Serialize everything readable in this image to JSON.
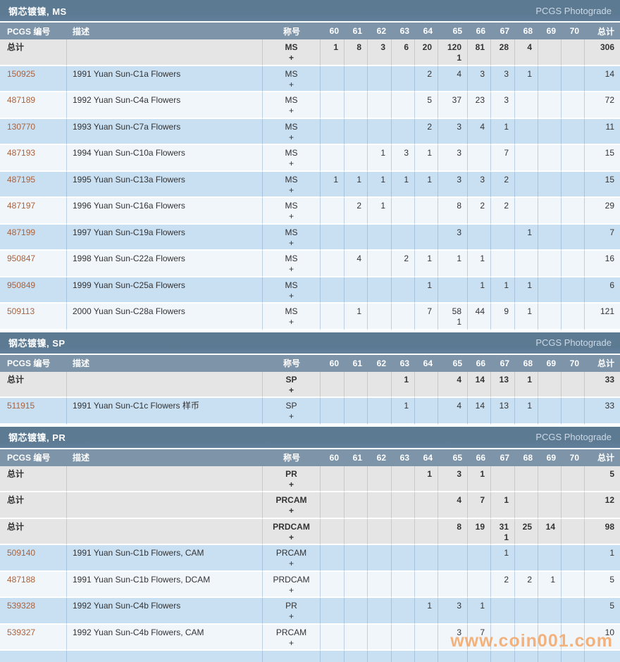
{
  "photograde_label": "PCGS Photograde",
  "watermark": {
    "text": "www.coin001.com",
    "color": "#f4a15d"
  },
  "colors": {
    "section_bar": "#5d7a93",
    "column_header": "#7d94a9",
    "total_row": "#e5e5e5",
    "row_blue": "#c9dff2",
    "row_light": "#f1f6fb",
    "link": "#a9623c"
  },
  "columns": {
    "id": "PCGS 编号",
    "description": "描述",
    "designation": "称号",
    "grades": [
      "60",
      "61",
      "62",
      "63",
      "64",
      "65",
      "66",
      "67",
      "68",
      "69",
      "70"
    ],
    "total": "总计"
  },
  "sections": [
    {
      "title": "钢芯镀镍, MS",
      "rows": [
        {
          "kind": "total",
          "id": "总计",
          "desc": "",
          "desig": [
            "MS",
            "+"
          ],
          "grades": [
            "1",
            "8",
            "3",
            "6",
            "20",
            [
              "120",
              "1"
            ],
            "81",
            "28",
            "4",
            "",
            ""
          ],
          "total": "306"
        },
        {
          "kind": "data",
          "id": "150925",
          "desc": "1991 Yuan Sun-C1a Flowers",
          "desig": [
            "MS",
            "+"
          ],
          "grades": [
            "",
            "",
            "",
            "",
            "2",
            "4",
            "3",
            "3",
            "1",
            "",
            ""
          ],
          "total": "14"
        },
        {
          "kind": "data",
          "id": "487189",
          "desc": "1992 Yuan Sun-C4a Flowers",
          "desig": [
            "MS",
            "+"
          ],
          "grades": [
            "",
            "",
            "",
            "",
            "5",
            "37",
            "23",
            "3",
            "",
            "",
            ""
          ],
          "total": "72"
        },
        {
          "kind": "data",
          "id": "130770",
          "desc": "1993 Yuan Sun-C7a Flowers",
          "desig": [
            "MS",
            "+"
          ],
          "grades": [
            "",
            "",
            "",
            "",
            "2",
            "3",
            "4",
            "1",
            "",
            "",
            ""
          ],
          "total": "11"
        },
        {
          "kind": "data",
          "id": "487193",
          "desc": "1994 Yuan Sun-C10a Flowers",
          "desig": [
            "MS",
            "+"
          ],
          "grades": [
            "",
            "",
            "1",
            "3",
            "1",
            "3",
            "",
            "7",
            "",
            "",
            ""
          ],
          "total": "15"
        },
        {
          "kind": "data",
          "id": "487195",
          "desc": "1995 Yuan Sun-C13a Flowers",
          "desig": [
            "MS",
            "+"
          ],
          "grades": [
            "1",
            "1",
            "1",
            "1",
            "1",
            "3",
            "3",
            "2",
            "",
            "",
            ""
          ],
          "total": "15"
        },
        {
          "kind": "data",
          "id": "487197",
          "desc": "1996 Yuan Sun-C16a Flowers",
          "desig": [
            "MS",
            "+"
          ],
          "grades": [
            "",
            "2",
            "1",
            "",
            "",
            "8",
            "2",
            "2",
            "",
            "",
            ""
          ],
          "total": "29"
        },
        {
          "kind": "data",
          "id": "487199",
          "desc": "1997 Yuan Sun-C19a Flowers",
          "desig": [
            "MS",
            "+"
          ],
          "grades": [
            "",
            "",
            "",
            "",
            "",
            "3",
            "",
            "",
            "1",
            "",
            ""
          ],
          "total": "7"
        },
        {
          "kind": "data",
          "id": "950847",
          "desc": "1998 Yuan Sun-C22a Flowers",
          "desig": [
            "MS",
            "+"
          ],
          "grades": [
            "",
            "4",
            "",
            "2",
            "1",
            "1",
            "1",
            "",
            "",
            "",
            ""
          ],
          "total": "16"
        },
        {
          "kind": "data",
          "id": "950849",
          "desc": "1999 Yuan Sun-C25a Flowers",
          "desig": [
            "MS",
            "+"
          ],
          "grades": [
            "",
            "",
            "",
            "",
            "1",
            "",
            "1",
            "1",
            "1",
            "",
            ""
          ],
          "total": "6"
        },
        {
          "kind": "data",
          "id": "509113",
          "desc": "2000 Yuan Sun-C28a Flowers",
          "desig": [
            "MS",
            "+"
          ],
          "grades": [
            "",
            "1",
            "",
            "",
            "7",
            [
              "58",
              "1"
            ],
            "44",
            "9",
            "1",
            "",
            ""
          ],
          "total": "121"
        }
      ]
    },
    {
      "title": "钢芯镀镍, SP",
      "rows": [
        {
          "kind": "total",
          "id": "总计",
          "desc": "",
          "desig": [
            "SP",
            "+"
          ],
          "grades": [
            "",
            "",
            "",
            "1",
            "",
            "4",
            "14",
            "13",
            "1",
            "",
            ""
          ],
          "total": "33"
        },
        {
          "kind": "data",
          "id": "511915",
          "desc": "1991 Yuan Sun-C1c Flowers 样币",
          "desig": [
            "SP",
            "+"
          ],
          "grades": [
            "",
            "",
            "",
            "1",
            "",
            "4",
            "14",
            "13",
            "1",
            "",
            ""
          ],
          "total": "33"
        }
      ]
    },
    {
      "title": "钢芯镀镍, PR",
      "partial_next_row": true,
      "rows": [
        {
          "kind": "total",
          "id": "总计",
          "desc": "",
          "desig": [
            "PR",
            "+"
          ],
          "grades": [
            "",
            "",
            "",
            "",
            "1",
            "3",
            "1",
            "",
            "",
            "",
            ""
          ],
          "total": "5"
        },
        {
          "kind": "total",
          "id": "总计",
          "desc": "",
          "desig": [
            "PRCAM",
            "+"
          ],
          "grades": [
            "",
            "",
            "",
            "",
            "",
            "4",
            "7",
            "1",
            "",
            "",
            ""
          ],
          "total": "12"
        },
        {
          "kind": "total",
          "id": "总计",
          "desc": "",
          "desig": [
            "PRDCAM",
            "+"
          ],
          "grades": [
            "",
            "",
            "",
            "",
            "",
            "8",
            "19",
            [
              "31",
              "1"
            ],
            "25",
            "14",
            ""
          ],
          "total": "98"
        },
        {
          "kind": "data",
          "id": "509140",
          "desc": "1991 Yuan Sun-C1b Flowers, CAM",
          "desig": [
            "PRCAM",
            "+"
          ],
          "grades": [
            "",
            "",
            "",
            "",
            "",
            "",
            "",
            "1",
            "",
            "",
            ""
          ],
          "total": "1"
        },
        {
          "kind": "data",
          "id": "487188",
          "desc": "1991 Yuan Sun-C1b Flowers, DCAM",
          "desig": [
            "PRDCAM",
            "+"
          ],
          "grades": [
            "",
            "",
            "",
            "",
            "",
            "",
            "",
            "2",
            "2",
            "1",
            ""
          ],
          "total": "5"
        },
        {
          "kind": "data",
          "id": "539328",
          "desc": "1992 Yuan Sun-C4b Flowers",
          "desig": [
            "PR",
            "+"
          ],
          "grades": [
            "",
            "",
            "",
            "",
            "1",
            "3",
            "1",
            "",
            "",
            "",
            ""
          ],
          "total": "5"
        },
        {
          "kind": "data",
          "id": "539327",
          "desc": "1992 Yuan Sun-C4b Flowers, CAM",
          "desig": [
            "PRCAM",
            "+"
          ],
          "grades": [
            "",
            "",
            "",
            "",
            "",
            "3",
            "7",
            "",
            "",
            "",
            ""
          ],
          "total": "10"
        }
      ]
    }
  ]
}
